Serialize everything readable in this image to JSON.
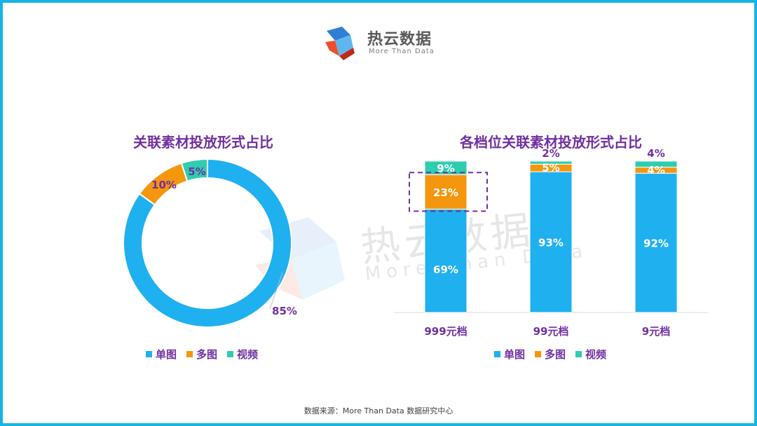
{
  "brand": {
    "name": "热云数据",
    "tagline": "More Than Data"
  },
  "colors": {
    "single": "#1fb0f0",
    "multi": "#f5960f",
    "video": "#2ecdb0",
    "title": "#7030a0",
    "frame": "#17b3e6"
  },
  "chart_data": [
    {
      "type": "pie",
      "title": "关联素材投放形式占比",
      "donut": true,
      "slices": [
        {
          "name": "单图",
          "value": 85,
          "label": "85%"
        },
        {
          "name": "多图",
          "value": 10,
          "label": "10%"
        },
        {
          "name": "视频",
          "value": 5,
          "label": "5%"
        }
      ],
      "legend": [
        "单图",
        "多图",
        "视频"
      ],
      "legend_position": "bottom"
    },
    {
      "type": "bar",
      "stacked": true,
      "title": "各档位关联素材投放形式占比",
      "categories": [
        "999元档",
        "99元档",
        "9元档"
      ],
      "series": [
        {
          "name": "单图",
          "values": [
            69,
            93,
            92
          ],
          "labels": [
            "69%",
            "93%",
            "92%"
          ]
        },
        {
          "name": "多图",
          "values": [
            23,
            5,
            4
          ],
          "labels": [
            "23%",
            "5%",
            "4%"
          ]
        },
        {
          "name": "视频",
          "values": [
            9,
            2,
            4
          ],
          "labels": [
            "9%",
            "2%",
            "4%"
          ]
        }
      ],
      "highlight": {
        "category": "999元档",
        "series": "多图",
        "style": "dashed-box"
      },
      "legend_position": "bottom",
      "grid": false
    }
  ],
  "source": "数据来源：More Than Data 数据研究中心"
}
